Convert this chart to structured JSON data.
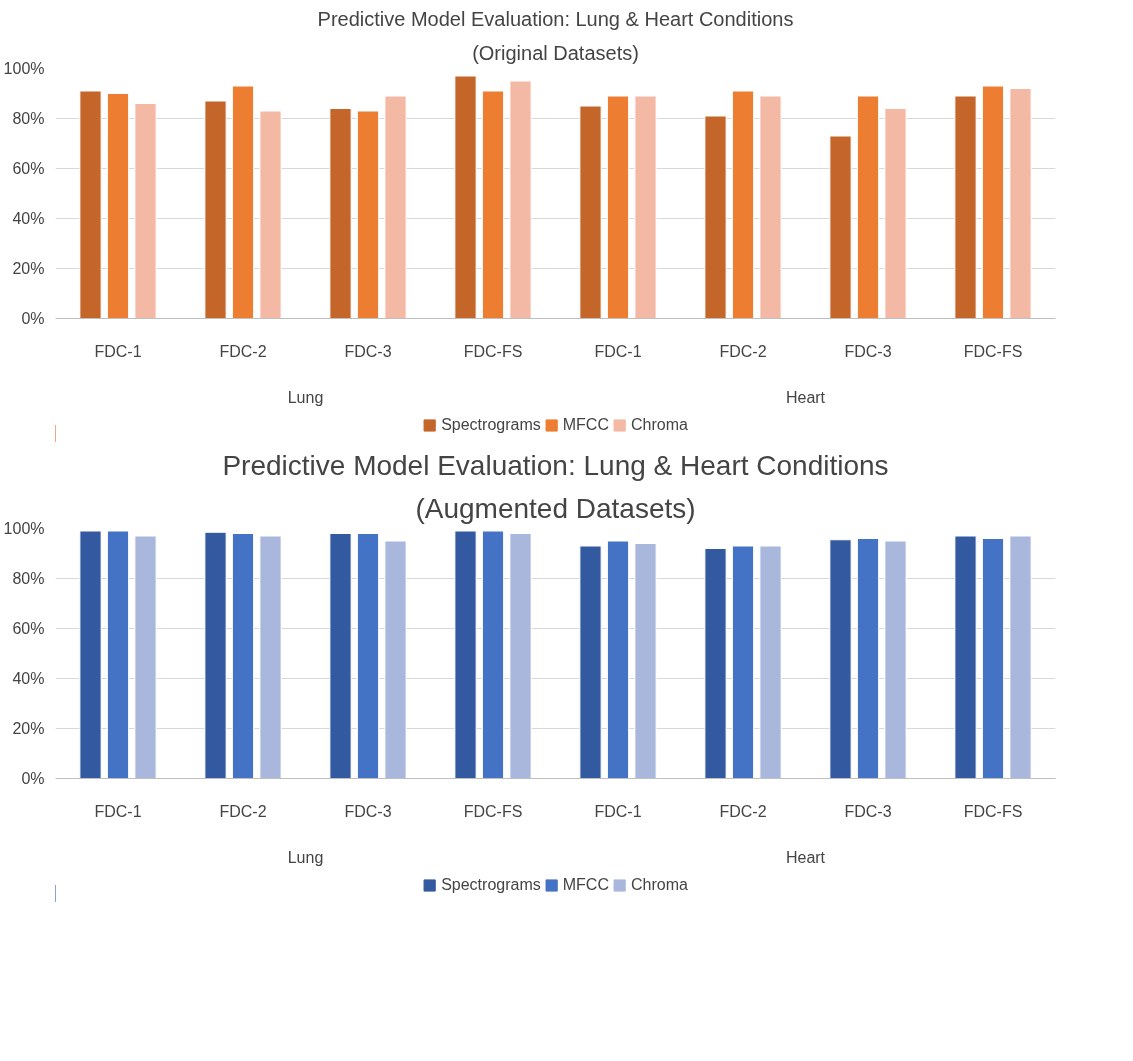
{
  "chart_data": [
    {
      "type": "bar",
      "title": "Predictive Model Evaluation: Lung & Heart Conditions",
      "subtitle": "(Original Datasets)",
      "categories": [
        "FDC-1",
        "FDC-2",
        "FDC-3",
        "FDC-FS",
        "FDC-1",
        "FDC-2",
        "FDC-3",
        "FDC-FS"
      ],
      "series": [
        {
          "name": "Spectrograms",
          "color": "#c4652a",
          "values": [
            91,
            87,
            84,
            97,
            85,
            81,
            73,
            89
          ]
        },
        {
          "name": "MFCC",
          "color": "#ed7d31",
          "values": [
            90,
            93,
            83,
            91,
            89,
            91,
            89,
            93
          ]
        },
        {
          "name": "Chroma",
          "color": "#f4b9a5",
          "values": [
            86,
            83,
            89,
            95,
            89,
            89,
            84,
            92
          ]
        }
      ],
      "ylim": [
        0,
        100
      ],
      "yticks": [
        {
          "value": 0,
          "label": "0%"
        },
        {
          "value": 20,
          "label": "20%"
        },
        {
          "value": 40,
          "label": "40%"
        },
        {
          "value": 60,
          "label": "60%"
        },
        {
          "value": 80,
          "label": "80%"
        },
        {
          "value": 100,
          "label": "100%"
        }
      ],
      "annotations": [
        "Lung",
        "Heart"
      ],
      "grid": "y",
      "legend": "bottom"
    },
    {
      "type": "bar",
      "title": "Predictive Model Evaluation: Lung & Heart Conditions",
      "subtitle": "(Augmented Datasets)",
      "categories": [
        "FDC-1",
        "FDC-2",
        "FDC-3",
        "FDC-FS",
        "FDC-1",
        "FDC-2",
        "FDC-3",
        "FDC-FS"
      ],
      "series": [
        {
          "name": "Spectrograms",
          "color": "#335aa1",
          "values": [
            99,
            98.5,
            98,
            99,
            93,
            92,
            95.5,
            97
          ]
        },
        {
          "name": "MFCC",
          "color": "#4472c4",
          "values": [
            99,
            98,
            98,
            99,
            95,
            93,
            96,
            96
          ]
        },
        {
          "name": "Chroma",
          "color": "#a9b7dc",
          "values": [
            97,
            97,
            95,
            98,
            94,
            93,
            95,
            97
          ]
        }
      ],
      "ylim": [
        0,
        100
      ],
      "yticks": [
        {
          "value": 0,
          "label": "0%"
        },
        {
          "value": 20,
          "label": "20%"
        },
        {
          "value": 40,
          "label": "40%"
        },
        {
          "value": 60,
          "label": "60%"
        },
        {
          "value": 80,
          "label": "80%"
        },
        {
          "value": 100,
          "label": "100%"
        }
      ],
      "annotations": [
        "Lung",
        "Heart"
      ],
      "grid": "y",
      "legend": "bottom"
    }
  ]
}
